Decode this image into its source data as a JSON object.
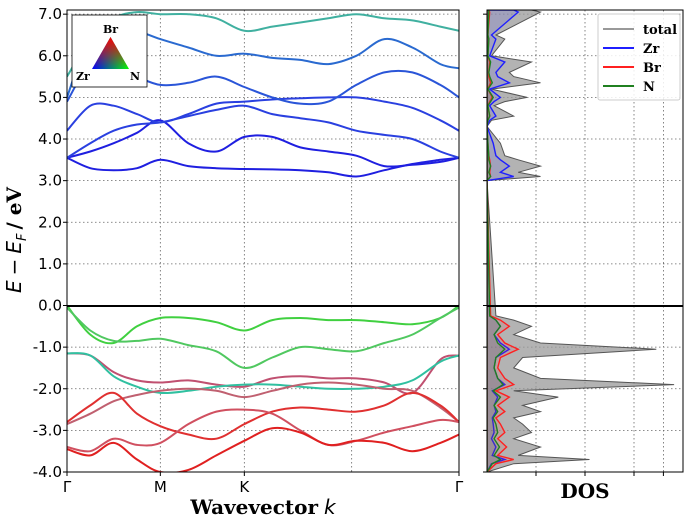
{
  "chart_data": [
    {
      "type": "line",
      "subtype": "band-structure",
      "xlabel": "Wavevector k",
      "ylabel": "E − E_F / eV",
      "ylim": [
        -4.0,
        7.1
      ],
      "xlim": [
        0,
        4.2
      ],
      "y_ticks": [
        "-4.0",
        "-3.0",
        "-2.0",
        "-1.0",
        "0.0",
        "1.0",
        "2.0",
        "3.0",
        "4.0",
        "5.0",
        "6.0",
        "7.0"
      ],
      "y_tick_values": [
        -4,
        -3,
        -2,
        -1,
        0,
        1,
        2,
        3,
        4,
        5,
        6,
        7
      ],
      "k_points": [
        {
          "label": "Γ",
          "x": 0
        },
        {
          "label": "M",
          "x": 1.0
        },
        {
          "label": "K",
          "x": 1.9
        },
        {
          "label": "Γ",
          "x": 4.2
        }
      ],
      "fermi_level": 0.0,
      "grid": true,
      "x": [
        0,
        0.25,
        0.5,
        0.75,
        1.0,
        1.3,
        1.6,
        1.9,
        2.2,
        2.5,
        2.8,
        3.1,
        3.4,
        3.7,
        4.0,
        4.2
      ],
      "bands": [
        {
          "name": "cb1",
          "color": "#1f1fe0",
          "values": [
            3.55,
            3.3,
            3.25,
            3.3,
            3.5,
            3.35,
            3.3,
            3.28,
            3.27,
            3.25,
            3.2,
            3.1,
            3.25,
            3.4,
            3.5,
            3.55
          ]
        },
        {
          "name": "cb2",
          "color": "#1f1fe0",
          "values": [
            3.55,
            3.7,
            3.9,
            4.15,
            4.45,
            3.9,
            3.7,
            4.05,
            4.05,
            3.8,
            3.7,
            3.6,
            3.35,
            3.38,
            3.45,
            3.55
          ]
        },
        {
          "name": "cb3",
          "color": "#2a40e0",
          "values": [
            3.55,
            3.9,
            4.2,
            4.35,
            4.4,
            4.55,
            4.7,
            4.8,
            4.6,
            4.5,
            4.4,
            4.2,
            4.1,
            4.0,
            3.7,
            3.55
          ]
        },
        {
          "name": "cb4",
          "color": "#2a40e0",
          "values": [
            4.2,
            4.8,
            4.8,
            4.6,
            4.4,
            4.6,
            4.85,
            4.9,
            4.95,
            4.98,
            5.0,
            5.0,
            4.9,
            4.75,
            4.45,
            4.2
          ]
        },
        {
          "name": "cb5",
          "color": "#2a55d8",
          "values": [
            4.9,
            5.8,
            5.75,
            5.5,
            5.3,
            5.35,
            5.5,
            5.25,
            5.0,
            4.85,
            4.9,
            5.3,
            5.6,
            5.6,
            5.3,
            5.0
          ]
        },
        {
          "name": "cb6",
          "color": "#2a6ad0",
          "values": [
            5.0,
            6.5,
            6.7,
            6.6,
            6.4,
            6.2,
            6.0,
            6.05,
            5.95,
            5.9,
            5.8,
            6.0,
            6.4,
            6.2,
            5.8,
            5.7
          ]
        },
        {
          "name": "cb7",
          "color": "#40b0a0",
          "values": [
            5.5,
            6.4,
            6.9,
            7.05,
            7.0,
            7.0,
            6.9,
            6.6,
            6.7,
            6.8,
            6.9,
            7.0,
            6.9,
            6.85,
            6.7,
            6.6
          ]
        },
        {
          "name": "vb1",
          "color": "#40d040",
          "values": [
            0,
            -0.7,
            -0.9,
            -0.5,
            -0.3,
            -0.3,
            -0.4,
            -0.6,
            -0.35,
            -0.3,
            -0.35,
            -0.35,
            -0.4,
            -0.45,
            -0.3,
            0
          ]
        },
        {
          "name": "vb2",
          "color": "#50c860",
          "values": [
            -0.05,
            -0.6,
            -0.85,
            -0.85,
            -0.8,
            -0.95,
            -1.1,
            -1.5,
            -1.25,
            -1.0,
            -1.05,
            -1.1,
            -0.9,
            -0.7,
            -0.3,
            -0.05
          ]
        },
        {
          "name": "vb3",
          "color": "#c05070",
          "values": [
            -1.15,
            -1.2,
            -1.6,
            -1.8,
            -1.85,
            -1.8,
            -1.9,
            -1.95,
            -1.75,
            -1.7,
            -1.75,
            -1.75,
            -1.85,
            -2.1,
            -1.3,
            -1.2
          ]
        },
        {
          "name": "vb4",
          "color": "#30c0a0",
          "values": [
            -1.15,
            -1.2,
            -1.7,
            -1.95,
            -2.1,
            -2.05,
            -1.95,
            -1.9,
            -1.9,
            -1.95,
            -2.0,
            -2.0,
            -1.95,
            -1.8,
            -1.35,
            -1.2
          ]
        },
        {
          "name": "vb5",
          "color": "#c06070",
          "values": [
            -2.85,
            -2.6,
            -2.3,
            -2.15,
            -2.05,
            -2.0,
            -2.05,
            -2.2,
            -2.05,
            -1.9,
            -1.85,
            -1.9,
            -2.0,
            -2.05,
            -2.45,
            -2.8
          ]
        },
        {
          "name": "vb6",
          "color": "#e03030",
          "values": [
            -2.8,
            -2.4,
            -2.1,
            -2.6,
            -2.9,
            -3.1,
            -3.2,
            -2.85,
            -2.55,
            -2.45,
            -2.5,
            -2.55,
            -2.4,
            -2.1,
            -2.4,
            -2.8
          ]
        },
        {
          "name": "vb7",
          "color": "#d05060",
          "values": [
            -3.4,
            -3.5,
            -3.2,
            -3.35,
            -3.3,
            -2.85,
            -2.55,
            -2.5,
            -2.6,
            -3.0,
            -3.35,
            -3.25,
            -3.05,
            -2.9,
            -2.75,
            -2.8
          ]
        },
        {
          "name": "vb8",
          "color": "#e02020",
          "values": [
            -3.45,
            -3.6,
            -3.3,
            -3.7,
            -4.0,
            -3.95,
            -3.6,
            -3.25,
            -2.95,
            -3.05,
            -3.35,
            -3.25,
            -3.3,
            -3.5,
            -3.3,
            -3.1
          ]
        }
      ]
    },
    {
      "type": "area",
      "subtype": "density-of-states",
      "xlabel": "DOS",
      "ylim": [
        -4.0,
        7.1
      ],
      "legend_position": "top-right",
      "y": [
        7.1,
        7.05,
        6.5,
        6.4,
        6.0,
        5.85,
        5.6,
        5.5,
        5.35,
        5.2,
        5.0,
        4.9,
        4.8,
        4.55,
        4.45,
        4.3,
        3.9,
        3.6,
        3.5,
        3.35,
        3.2,
        3.1,
        3.0,
        -0.25,
        -0.35,
        -0.5,
        -0.7,
        -0.9,
        -1.05,
        -1.25,
        -1.5,
        -1.75,
        -1.9,
        -2.05,
        -2.2,
        -2.4,
        -2.55,
        -2.7,
        -2.85,
        -3.05,
        -3.2,
        -3.4,
        -3.6,
        -3.7,
        -3.8,
        -4.0
      ],
      "series": [
        {
          "name": "total",
          "color": "#999999",
          "values": [
            0.5,
            0.6,
            0.1,
            0.2,
            0.05,
            0.5,
            0.25,
            0.3,
            0.6,
            0.05,
            0.45,
            0.2,
            0.08,
            0.3,
            0.05,
            0.0,
            0.15,
            0.2,
            0.35,
            0.6,
            0.35,
            0.6,
            0.0,
            0.1,
            0.3,
            0.5,
            0.3,
            0.6,
            1.9,
            0.4,
            0.3,
            0.6,
            2.1,
            0.3,
            0.8,
            0.4,
            0.6,
            0.3,
            0.4,
            0.5,
            0.3,
            0.6,
            0.35,
            1.15,
            0.3,
            0.0
          ]
        },
        {
          "name": "Zr",
          "color": "#1f1fff",
          "values": [
            0.3,
            0.35,
            0.05,
            0.1,
            0.03,
            0.2,
            0.1,
            0.12,
            0.25,
            0.03,
            0.15,
            0.08,
            0.03,
            0.1,
            0.03,
            0.0,
            0.07,
            0.1,
            0.15,
            0.25,
            0.15,
            0.3,
            0.0,
            0.03,
            0.1,
            0.15,
            0.08,
            0.15,
            0.25,
            0.1,
            0.08,
            0.12,
            0.2,
            0.06,
            0.12,
            0.08,
            0.1,
            0.06,
            0.07,
            0.08,
            0.05,
            0.1,
            0.06,
            0.2,
            0.05,
            0.0
          ]
        },
        {
          "name": "Br",
          "color": "#ff2020",
          "values": [
            0.02,
            0.03,
            0.01,
            0.02,
            0.01,
            0.03,
            0.02,
            0.02,
            0.04,
            0.01,
            0.06,
            0.03,
            0.01,
            0.03,
            0.01,
            0.0,
            0.01,
            0.02,
            0.03,
            0.04,
            0.03,
            0.04,
            0.0,
            0.04,
            0.15,
            0.25,
            0.12,
            0.2,
            0.35,
            0.15,
            0.12,
            0.2,
            0.3,
            0.1,
            0.25,
            0.12,
            0.2,
            0.1,
            0.15,
            0.2,
            0.12,
            0.22,
            0.12,
            0.3,
            0.1,
            0.0
          ]
        },
        {
          "name": "N",
          "color": "#208020",
          "values": [
            0.02,
            0.02,
            0.01,
            0.02,
            0.01,
            0.04,
            0.02,
            0.03,
            0.06,
            0.01,
            0.07,
            0.04,
            0.01,
            0.03,
            0.01,
            0.0,
            0.01,
            0.02,
            0.02,
            0.04,
            0.02,
            0.04,
            0.0,
            0.03,
            0.1,
            0.15,
            0.08,
            0.12,
            0.2,
            0.1,
            0.08,
            0.12,
            0.18,
            0.07,
            0.15,
            0.08,
            0.12,
            0.07,
            0.1,
            0.12,
            0.08,
            0.14,
            0.08,
            0.15,
            0.06,
            0.0
          ]
        }
      ]
    }
  ],
  "inset": {
    "top_label": "Br",
    "left_label": "Zr",
    "right_label": "N"
  },
  "labels": {
    "xlabel_main": "Wavevector",
    "xlabel_k": "k",
    "ylabel_E": "E",
    "ylabel_minus": "−",
    "ylabel_EF": "E",
    "ylabel_F": "F",
    "ylabel_unit": "/ eV",
    "dos_label": "DOS"
  }
}
